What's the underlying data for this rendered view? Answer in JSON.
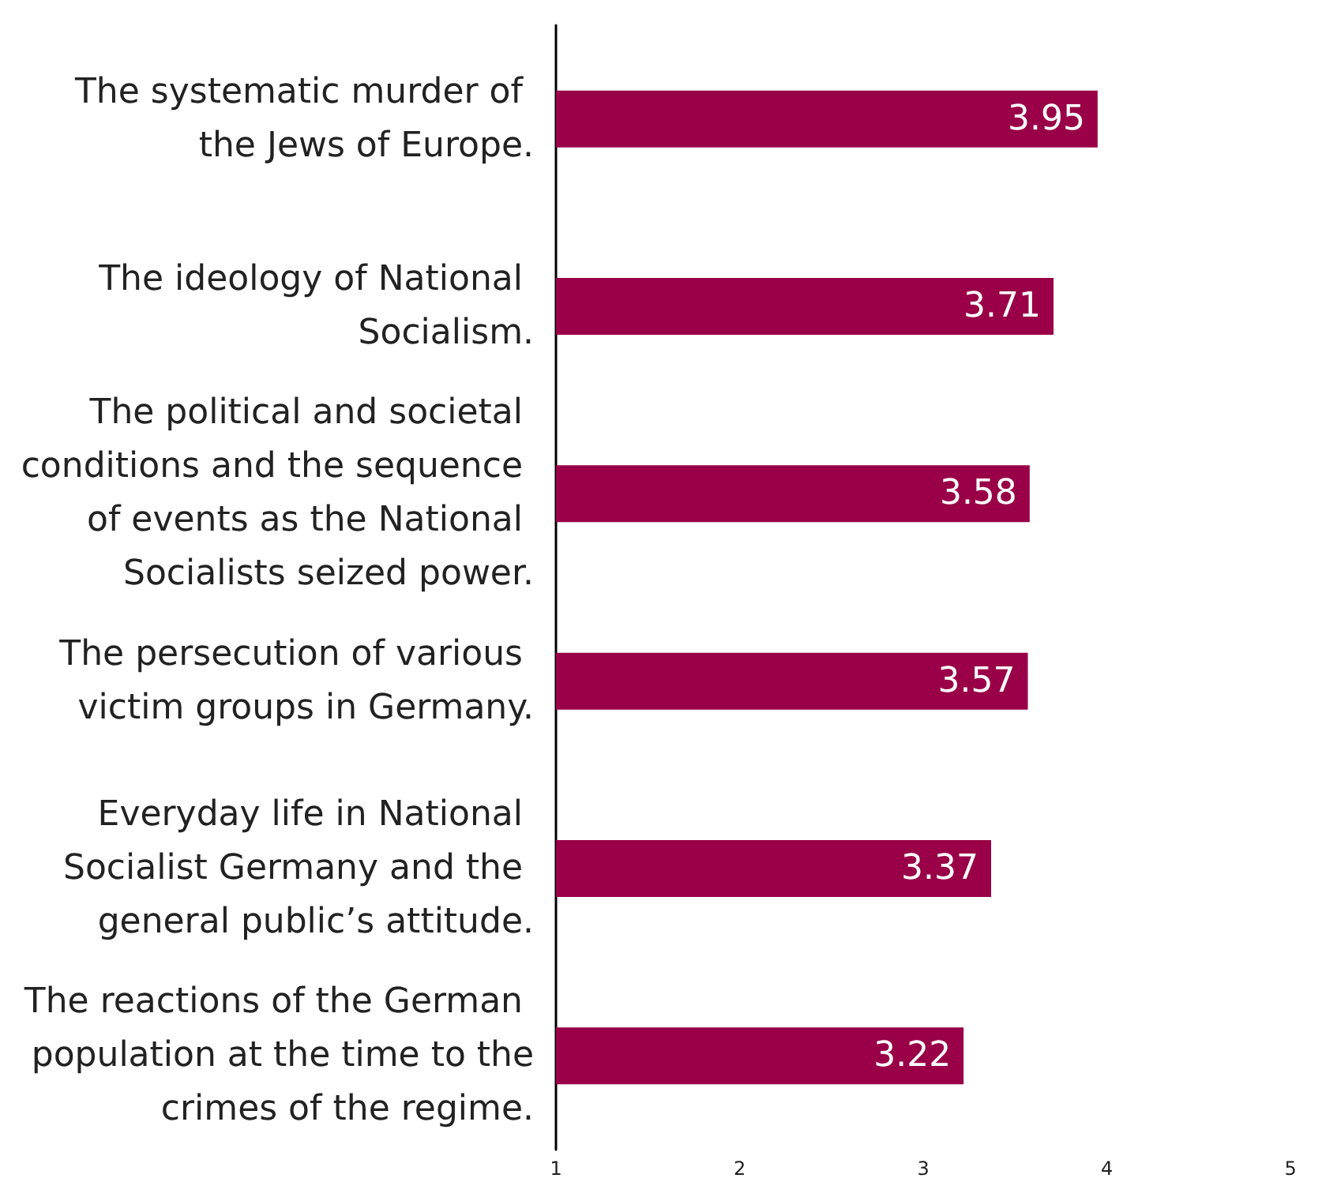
{
  "chart_data": {
    "type": "bar",
    "orientation": "horizontal",
    "categories": [
      "The systematic murder of the Jews of Europe.",
      "The ideology of National Socialism.",
      "The political and societal conditions and the sequence of events as the National Socialists seized power.",
      "The persecution of various victim groups in Germany.",
      "Everyday life in National Socialist Germany and the general public’s attitude.",
      "The reactions of the German population at the time to the crimes of the regime."
    ],
    "values": [
      3.95,
      3.71,
      3.58,
      3.57,
      3.37,
      3.22
    ],
    "color": "#990047",
    "xlim": [
      1,
      5
    ],
    "xticks": [
      1,
      2,
      3,
      4,
      5
    ],
    "data_labels": true
  }
}
